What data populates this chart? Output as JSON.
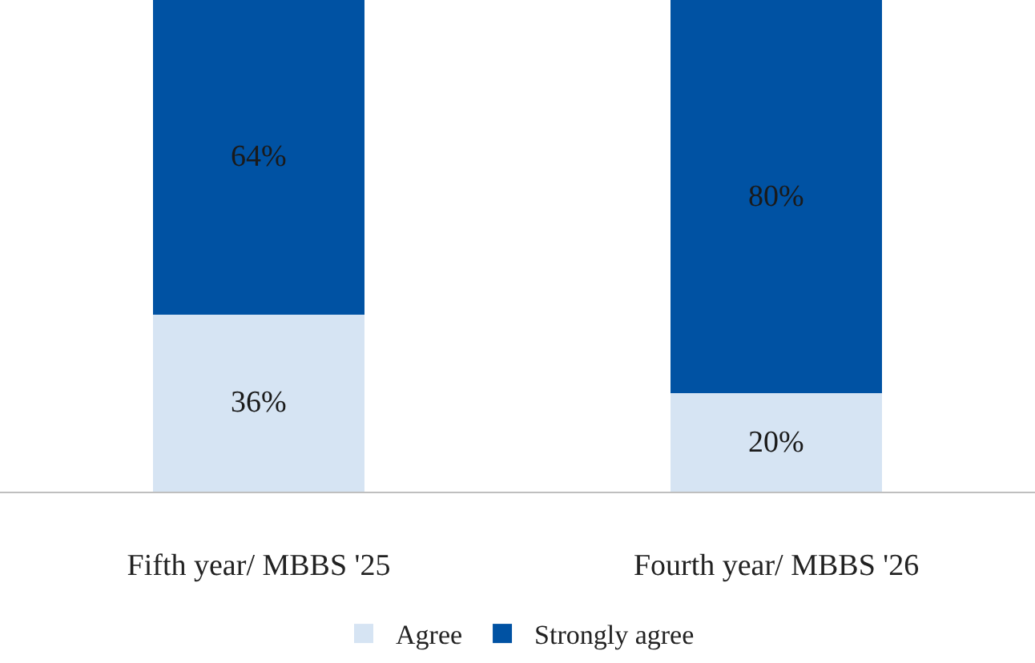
{
  "chart_data": {
    "type": "bar",
    "stacked": true,
    "categories": [
      "Fifth year/ MBBS '25",
      "Fourth year/ MBBS '26"
    ],
    "series": [
      {
        "name": "Agree",
        "color": "#d6e4f3",
        "values": [
          36,
          20
        ],
        "value_labels": [
          "36%",
          "20%"
        ]
      },
      {
        "name": "Strongly agree",
        "color": "#0052a3",
        "values": [
          64,
          80
        ],
        "value_labels": [
          "64%",
          "80%"
        ]
      }
    ],
    "legend": "bottom"
  }
}
